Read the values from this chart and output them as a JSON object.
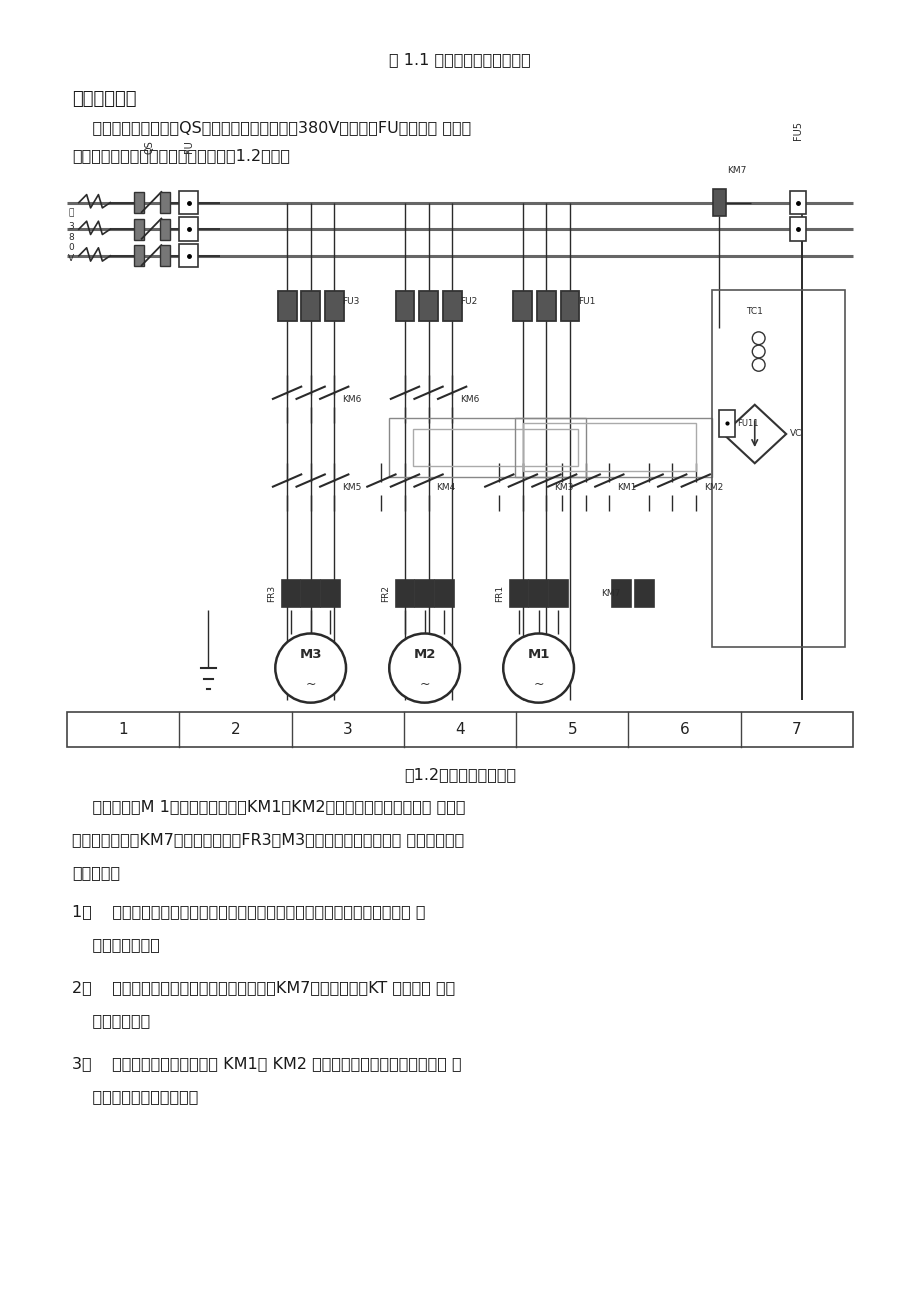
{
  "bg_color": "#ffffff",
  "title_center": "图 1.1 机床总电气控制原理图",
  "section_title": "主动电路分析",
  "para1_l1": "    三相交流电源由开关QS引入，电压等级为交流380V，熔断器FU作主电路 的短路",
  "para1_l2": "保护。电机主电路的控制原理图如下图1.2所示。",
  "fig_caption": "图1.2电机主回路原理图",
  "para2_line1": "    主轴电动机M 1的正反转由接触器KM1和KM2的动合主触点控制，制动 时，采",
  "para2_line2": "用能耗制动，由KM7控制，热继电器FR3作M3的长期保护。该机床主 轴电机有一下",
  "para2_line3": "性能特点：",
  "item1_line1": "1、    启动方式为直接启动，由于主轴电机起动时因是空载起动，时间较短， 故",
  "item1_line2": "    采用直接起动。",
  "item2_line1": "2、    制动方式采用的能耗制动，通过接触器KM7和时间继电器KT 一起达到 能耗",
  "item2_line2": "    制动的目的。",
  "item3_line1": "3、    主轴电机可以通过接触器 KM1、 KM2 来改变接入三相电源的相序，从 而",
  "item3_line2": "    达到电机的正反转功能。"
}
